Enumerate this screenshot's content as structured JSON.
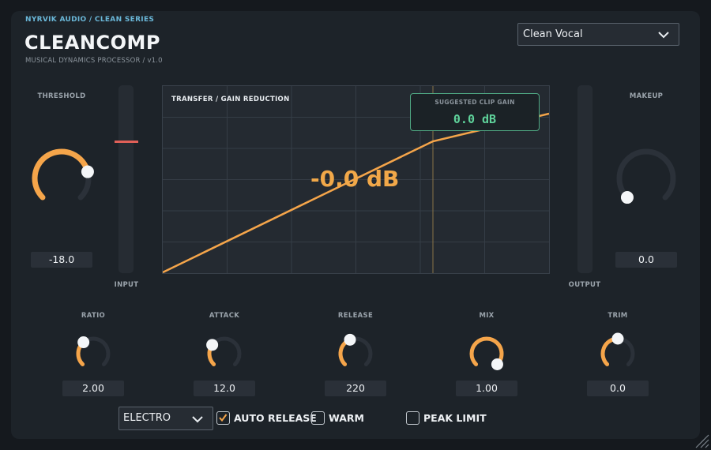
{
  "header": {
    "brand": "NYRVIK AUDIO  /  CLEAN SERIES",
    "title": "CLEANCOMP",
    "subtitle": "MUSICAL DYNAMICS PROCESSOR  /  v1.0"
  },
  "preset": {
    "selected": "Clean Vocal"
  },
  "threshold": {
    "label": "THRESHOLD",
    "value": "-18.0",
    "level": 0.78
  },
  "makeup": {
    "label": "MAKEUP",
    "value": "0.0",
    "level": 0.0
  },
  "meters": {
    "input_label": "INPUT",
    "output_label": "OUTPUT"
  },
  "graph": {
    "title": "TRANSFER / GAIN REDUCTION",
    "gain_reduction": "-0.0 dB",
    "clip_gain_label": "SUGGESTED CLIP GAIN",
    "clip_gain_value": "0.0 dB"
  },
  "knobs": [
    {
      "key": "ratio",
      "label": "RATIO",
      "value": "2.00",
      "level": 0.35
    },
    {
      "key": "attack",
      "label": "ATTACK",
      "value": "12.0",
      "level": 0.3
    },
    {
      "key": "release",
      "label": "RELEASE",
      "value": "220",
      "level": 0.42
    },
    {
      "key": "mix",
      "label": "MIX",
      "value": "1.00",
      "level": 1.0
    },
    {
      "key": "trim",
      "label": "TRIM",
      "value": "0.0",
      "level": 0.5
    }
  ],
  "footer": {
    "style_selected": "ELECTRO",
    "auto_release": {
      "label": "AUTO RELEASE",
      "checked": true
    },
    "warm": {
      "label": "WARM",
      "checked": false
    },
    "peak_limit": {
      "label": "PEAK LIMIT",
      "checked": false
    }
  },
  "colors": {
    "accent": "#f5a54a",
    "track": "#2b3139",
    "clip": "#5fd39b",
    "input_marker": "#e06058"
  }
}
